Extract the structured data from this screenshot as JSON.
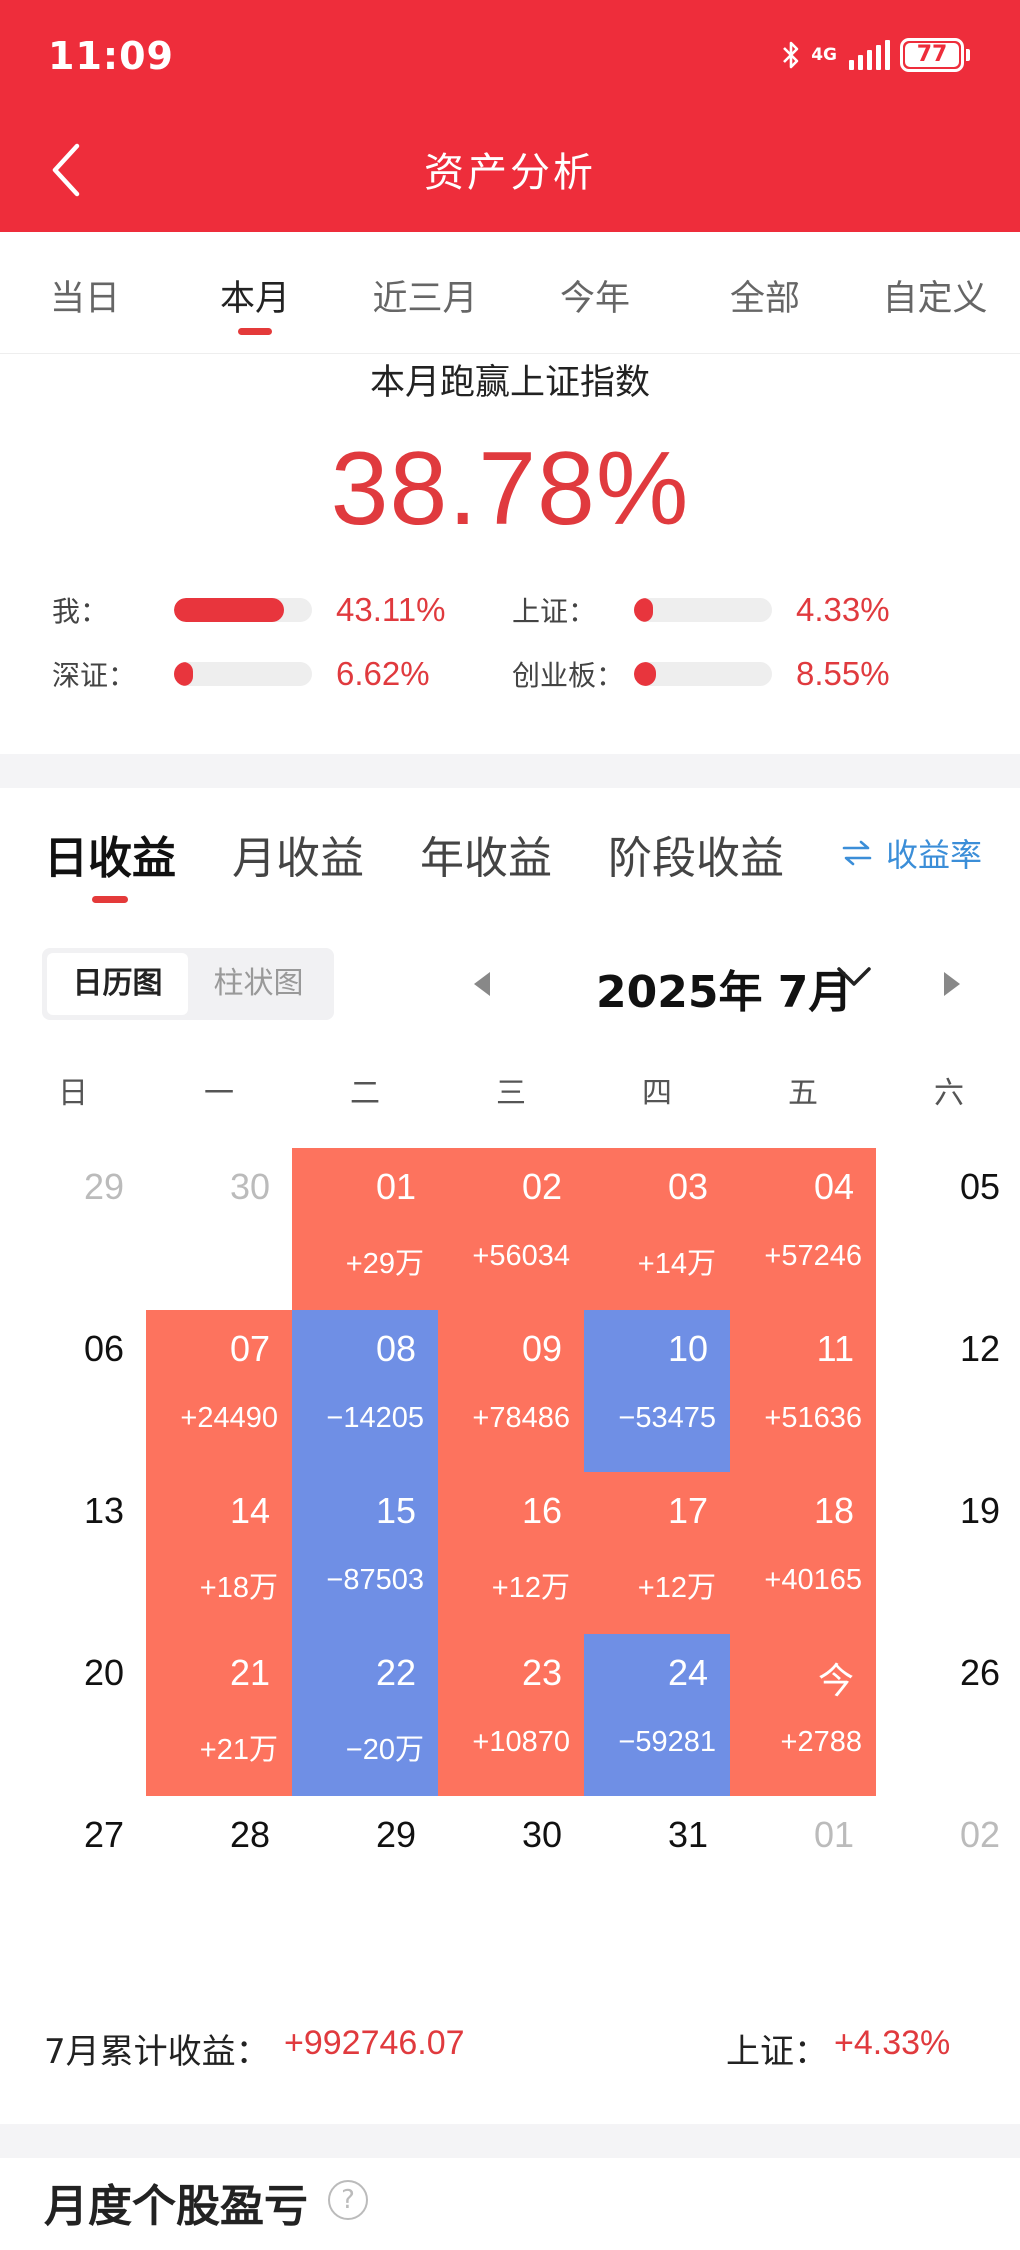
{
  "status_bar": {
    "time": "11:09",
    "network": "4G",
    "battery": "77",
    "icons": [
      "bluetooth-icon",
      "signal-icon",
      "battery-icon"
    ]
  },
  "header": {
    "title": "资产分析",
    "back_icon": "chevron-left-icon",
    "background": "#ee2d3b"
  },
  "period_tabs": [
    {
      "label": "当日",
      "active": false
    },
    {
      "label": "本月",
      "active": true
    },
    {
      "label": "近三月",
      "active": false
    },
    {
      "label": "今年",
      "active": false
    },
    {
      "label": "全部",
      "active": false
    },
    {
      "label": "自定义",
      "active": false
    }
  ],
  "beat": {
    "title": "本月跑赢上证指数",
    "value": "38.78%",
    "comparisons": [
      {
        "label": "我：",
        "pct": "43.11%",
        "level": 0.8
      },
      {
        "label": "上证：",
        "pct": "4.33%",
        "level": 0.08
      },
      {
        "label": "深证：",
        "pct": "6.62%",
        "level": 0.12
      },
      {
        "label": "创业板：",
        "pct": "8.55%",
        "level": 0.16
      }
    ]
  },
  "profit": {
    "type_tabs": [
      {
        "label": "日收益",
        "active": true
      },
      {
        "label": "月收益",
        "active": false
      },
      {
        "label": "年收益",
        "active": false
      },
      {
        "label": "阶段收益",
        "active": false
      }
    ],
    "rate_link": {
      "icon": "swap-icon",
      "label": "收益率"
    },
    "view_toggle": [
      {
        "label": "日历图",
        "active": true
      },
      {
        "label": "柱状图",
        "active": false
      }
    ],
    "month": "2025年 7月",
    "weekdays": [
      "日",
      "一",
      "二",
      "三",
      "四",
      "五",
      "六"
    ],
    "weeks": [
      [
        {
          "date": "29",
          "dim": true
        },
        {
          "date": "30",
          "dim": true
        },
        {
          "date": "01",
          "pnl": "+29万",
          "trend": "up"
        },
        {
          "date": "02",
          "pnl": "+56034",
          "trend": "up"
        },
        {
          "date": "03",
          "pnl": "+14万",
          "trend": "up"
        },
        {
          "date": "04",
          "pnl": "+57246",
          "trend": "up"
        },
        {
          "date": "05"
        }
      ],
      [
        {
          "date": "06"
        },
        {
          "date": "07",
          "pnl": "+24490",
          "trend": "up"
        },
        {
          "date": "08",
          "pnl": "−14205",
          "trend": "down"
        },
        {
          "date": "09",
          "pnl": "+78486",
          "trend": "up"
        },
        {
          "date": "10",
          "pnl": "−53475",
          "trend": "down"
        },
        {
          "date": "11",
          "pnl": "+51636",
          "trend": "up"
        },
        {
          "date": "12"
        }
      ],
      [
        {
          "date": "13"
        },
        {
          "date": "14",
          "pnl": "+18万",
          "trend": "up"
        },
        {
          "date": "15",
          "pnl": "−87503",
          "trend": "down"
        },
        {
          "date": "16",
          "pnl": "+12万",
          "trend": "up"
        },
        {
          "date": "17",
          "pnl": "+12万",
          "trend": "up"
        },
        {
          "date": "18",
          "pnl": "+40165",
          "trend": "up"
        },
        {
          "date": "19"
        }
      ],
      [
        {
          "date": "20"
        },
        {
          "date": "21",
          "pnl": "+21万",
          "trend": "up"
        },
        {
          "date": "22",
          "pnl": "−20万",
          "trend": "down"
        },
        {
          "date": "23",
          "pnl": "+10870",
          "trend": "up"
        },
        {
          "date": "24",
          "pnl": "−59281",
          "trend": "down"
        },
        {
          "date": "今",
          "pnl": "+2788",
          "trend": "up"
        },
        {
          "date": "26"
        }
      ],
      [
        {
          "date": "27"
        },
        {
          "date": "28"
        },
        {
          "date": "29"
        },
        {
          "date": "30"
        },
        {
          "date": "31"
        },
        {
          "date": "01",
          "dim": true
        },
        {
          "date": "02",
          "dim": true
        }
      ]
    ],
    "summary": {
      "label": "7月累计收益：",
      "value": "+992746.07",
      "index_label": "上证：",
      "index_value": "+4.33%"
    },
    "colors": {
      "up": "#fd735e",
      "down": "#6f8fe5",
      "accent_red": "#e03a3e",
      "link_blue": "#3b8ed8"
    }
  },
  "stock_section": {
    "title": "月度个股盈亏",
    "help_icon": "help-circle-icon",
    "help_glyph": "?"
  }
}
